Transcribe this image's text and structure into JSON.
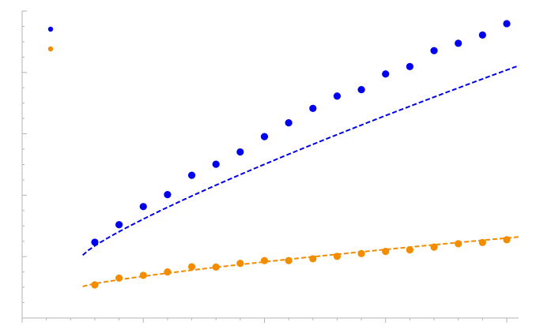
{
  "chart_data": {
    "type": "scatter",
    "grid": false,
    "legend": "top-left",
    "xlim": [
      0,
      20.5
    ],
    "ylim": [
      0,
      100
    ],
    "x_ticks": [
      0,
      5,
      10,
      15,
      20
    ],
    "x_minor_step": 1,
    "y_minor_step": 5,
    "y_major_every": 4,
    "series": [
      {
        "color": "#0000ee",
        "points": [
          [
            3,
            24.7
          ],
          [
            4,
            30.4
          ],
          [
            5,
            36.3
          ],
          [
            6,
            40.2
          ],
          [
            7,
            46.5
          ],
          [
            8,
            50.1
          ],
          [
            9,
            54.1
          ],
          [
            10,
            59.1
          ],
          [
            11,
            63.6
          ],
          [
            12,
            68.3
          ],
          [
            13,
            72.3
          ],
          [
            14,
            74.4
          ],
          [
            15,
            79.5
          ],
          [
            16,
            81.9
          ],
          [
            17,
            87.1
          ],
          [
            18,
            89.5
          ],
          [
            19,
            92.2
          ],
          [
            20,
            95.9
          ]
        ],
        "fit": {
          "a": 20.46,
          "b": 5.45,
          "exp": 0.84,
          "x_from": 2.5,
          "x_to": 20.5
        }
      },
      {
        "color": "#f28c00",
        "points": [
          [
            3,
            10.8
          ],
          [
            4,
            13.0
          ],
          [
            5,
            13.9
          ],
          [
            6,
            15.0
          ],
          [
            7,
            16.7
          ],
          [
            8,
            16.6
          ],
          [
            9,
            17.8
          ],
          [
            10,
            18.7
          ],
          [
            11,
            18.7
          ],
          [
            12,
            19.3
          ],
          [
            13,
            20.1
          ],
          [
            14,
            21.0
          ],
          [
            15,
            21.7
          ],
          [
            16,
            22.2
          ],
          [
            17,
            23.1
          ],
          [
            18,
            24.2
          ],
          [
            19,
            24.6
          ],
          [
            20,
            25.5
          ]
        ],
        "fit": {
          "a": 10.26,
          "b": 1.6,
          "exp": 0.8,
          "x_from": 2.5,
          "x_to": 20.5
        }
      }
    ]
  }
}
